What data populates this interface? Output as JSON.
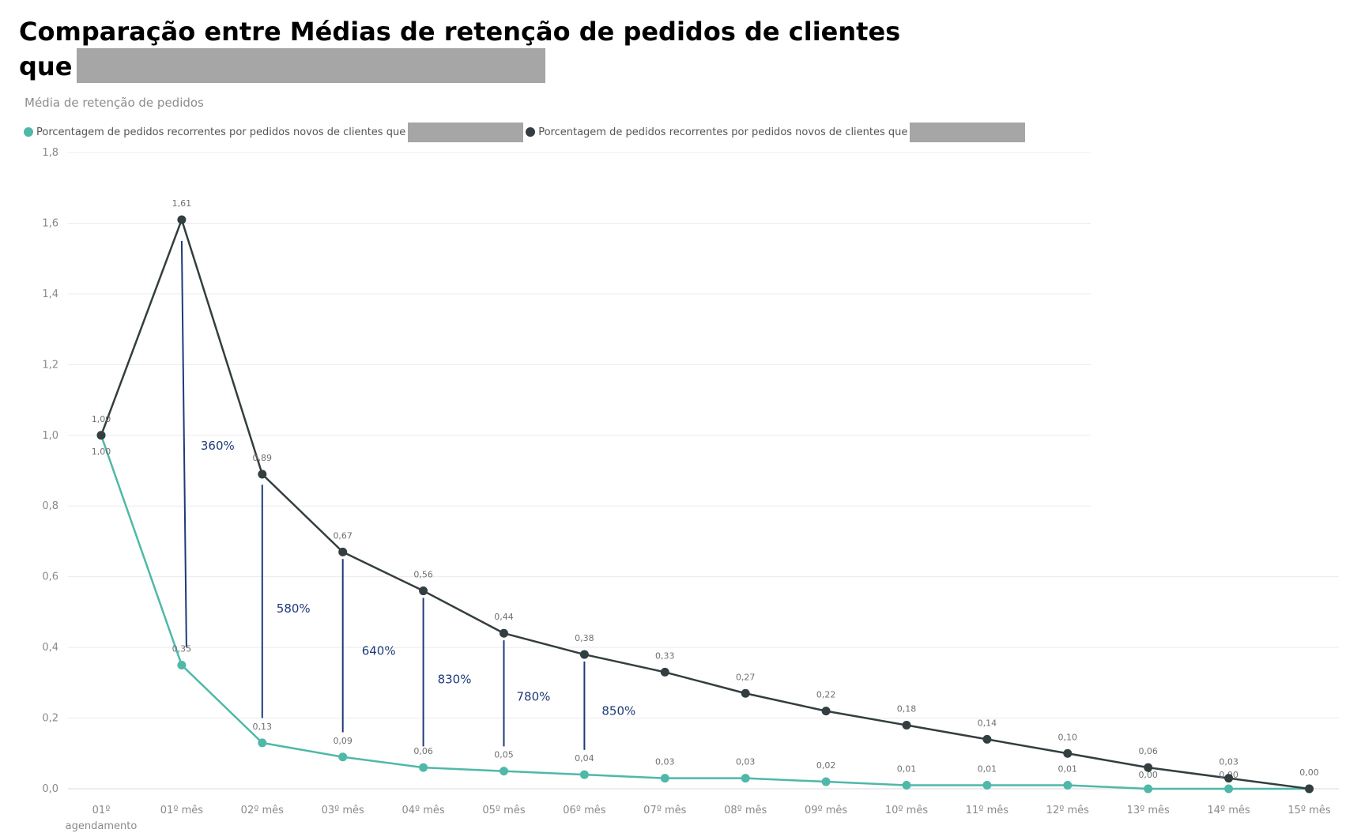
{
  "header": {
    "title_line1": "Comparação entre Médias de retenção de pedidos de clientes",
    "title_line2": "que"
  },
  "chart_data": {
    "type": "line",
    "title": "Comparação entre Médias de retenção de pedidos de clientes que",
    "subtitle": "Média de retenção de pedidos",
    "xlabel": "",
    "ylabel": "",
    "ylim": [
      0,
      1.8
    ],
    "yticks": [
      "0,0",
      "0,2",
      "0,4",
      "0,6",
      "0,8",
      "1,0",
      "1,2",
      "1,4",
      "1,6",
      "1,8"
    ],
    "grid": true,
    "legend_position": "top-left",
    "categories": [
      "01º agendamento",
      "01º mês",
      "02º mês",
      "03º mês",
      "04º mês",
      "05º mês",
      "06º mês",
      "07º mês",
      "08º mês",
      "09º mês",
      "10º mês",
      "11º mês",
      "12º mês",
      "13º mês",
      "14º mês",
      "15º mês"
    ],
    "series": [
      {
        "name": "Porcentagem de pedidos recorrentes por pedidos novos de clientes que",
        "color": "#4fb8a8",
        "values": [
          1.0,
          0.35,
          0.13,
          0.09,
          0.06,
          0.05,
          0.04,
          0.03,
          0.03,
          0.02,
          0.01,
          0.01,
          0.01,
          0.0,
          0.0,
          0.0
        ],
        "labels": [
          "1,00",
          "0,35",
          "0,13",
          "0,09",
          "0,06",
          "0,05",
          "0,04",
          "0,03",
          "0,03",
          "0,02",
          "0,01",
          "0,01",
          "0,01",
          "0,00",
          "0,00",
          ""
        ]
      },
      {
        "name": "Porcentagem de pedidos recorrentes por pedidos novos de clientes que",
        "color": "#333e40",
        "values": [
          1.0,
          1.61,
          0.89,
          0.67,
          0.56,
          0.44,
          0.38,
          0.33,
          0.27,
          0.22,
          0.18,
          0.14,
          0.1,
          0.06,
          0.03,
          0.0
        ],
        "labels": [
          "1,00",
          "1,61",
          "0,89",
          "0,67",
          "0,56",
          "0,44",
          "0,38",
          "0,33",
          "0,27",
          "0,22",
          "0,18",
          "0,14",
          "0,10",
          "0,06",
          "0,03",
          "0,00"
        ]
      }
    ],
    "annotations": [
      {
        "category_index": 1,
        "text": "360%",
        "from": 1.55,
        "to": 0.4
      },
      {
        "category_index": 2,
        "text": "580%",
        "from": 0.86,
        "to": 0.2
      },
      {
        "category_index": 3,
        "text": "640%",
        "from": 0.65,
        "to": 0.16
      },
      {
        "category_index": 4,
        "text": "830%",
        "from": 0.54,
        "to": 0.12
      },
      {
        "category_index": 5,
        "text": "780%",
        "from": 0.42,
        "to": 0.12
      },
      {
        "category_index": 6,
        "text": "850%",
        "from": 0.36,
        "to": 0.11
      }
    ],
    "annotation_color": "#1f3a7a"
  }
}
